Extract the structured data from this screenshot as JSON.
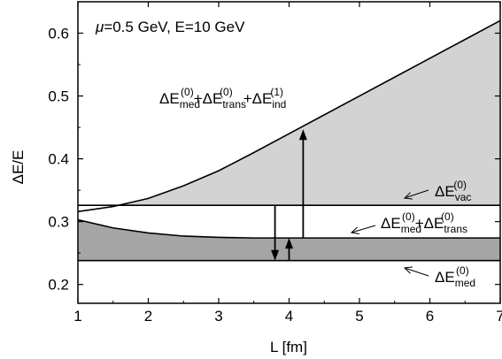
{
  "chart_data": {
    "type": "area",
    "title": "",
    "xlabel": "L [fm]",
    "ylabel": "ΔE/E",
    "xlim": [
      1,
      7
    ],
    "ylim": [
      0.17,
      0.65
    ],
    "xticks": [
      "1",
      "2",
      "3",
      "4",
      "5",
      "6",
      "7"
    ],
    "xtick_values": [
      1,
      2,
      3,
      4,
      5,
      6,
      7
    ],
    "yticks": [
      "0.2",
      "0.3",
      "0.4",
      "0.5",
      "0.6"
    ],
    "ytick_values": [
      0.2,
      0.3,
      0.4,
      0.5,
      0.6
    ],
    "params_label": {
      "mu": "μ",
      "text": "=0.5 GeV, E=10 GeV"
    },
    "series": [
      {
        "name": "ΔE_med^(0)+ΔE_trans^(0)+ΔE_ind^(1)",
        "fill": "#d3d3d3",
        "x": [
          1.0,
          1.5,
          2.0,
          2.5,
          3.0,
          3.5,
          4.0,
          4.5,
          5.0,
          5.5,
          6.0,
          6.5,
          7.0
        ],
        "y": [
          0.316,
          0.324,
          0.337,
          0.357,
          0.381,
          0.41,
          0.44,
          0.47,
          0.5,
          0.53,
          0.56,
          0.59,
          0.62
        ]
      },
      {
        "name": "ΔE_vac^(0)",
        "x": [
          1.0,
          7.0
        ],
        "y": [
          0.326,
          0.326
        ]
      },
      {
        "name": "ΔE_med^(0)+ΔE_trans^(0)",
        "fill": "#a5a5a5",
        "x": [
          1.0,
          1.5,
          2.0,
          2.5,
          3.0,
          3.5,
          4.0,
          4.5,
          5.0,
          5.5,
          6.0,
          6.5,
          7.0
        ],
        "y": [
          0.303,
          0.29,
          0.282,
          0.277,
          0.275,
          0.274,
          0.274,
          0.274,
          0.274,
          0.274,
          0.274,
          0.274,
          0.274
        ]
      },
      {
        "name": "ΔE_med^(0)",
        "x": [
          1.0,
          7.0
        ],
        "y": [
          0.238,
          0.238
        ]
      }
    ],
    "annotations": {
      "top": {
        "d": "ΔE",
        "sub1": "med",
        "sup1": "(0)",
        "plus1": "+ΔE",
        "sub2": "trans",
        "sup2": "(0)",
        "plus2": "+ΔE",
        "sub3": "ind",
        "sup3": "(1)"
      },
      "vac": {
        "d": "ΔE",
        "sub": "vac",
        "sup": "(0)"
      },
      "mid": {
        "d": "ΔE",
        "sub1": "med",
        "sup1": "(0)",
        "plus": "+ΔE",
        "sub2": "trans",
        "sup2": "(0)"
      },
      "med": {
        "d": "ΔE",
        "sub": "med",
        "sup": "(0)"
      }
    },
    "arrows": [
      {
        "x": 4.2,
        "from": 0.274,
        "to": 0.447
      },
      {
        "x": 3.8,
        "from": 0.326,
        "to": 0.238
      },
      {
        "x": 4.0,
        "from": 0.238,
        "to": 0.274
      }
    ]
  }
}
